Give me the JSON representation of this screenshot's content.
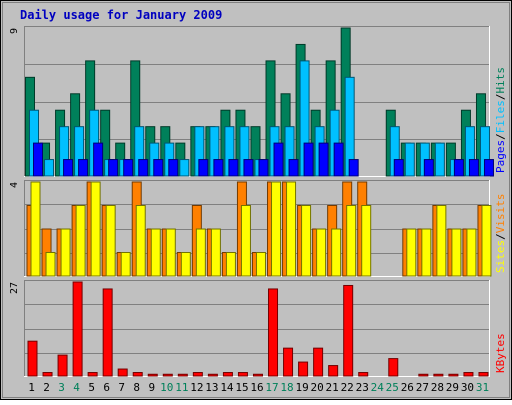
{
  "chart_data": {
    "type": "bar",
    "title": "Daily usage for January 2009",
    "categories": [
      "1",
      "2",
      "3",
      "4",
      "5",
      "6",
      "7",
      "8",
      "9",
      "10",
      "11",
      "12",
      "13",
      "14",
      "15",
      "16",
      "17",
      "18",
      "19",
      "20",
      "21",
      "22",
      "23",
      "24",
      "25",
      "26",
      "27",
      "28",
      "29",
      "30",
      "31"
    ],
    "weekend_days": [
      3,
      4,
      10,
      11,
      17,
      18,
      24,
      25,
      31
    ],
    "panels": [
      {
        "id": "hits",
        "ymax_label": "9",
        "ylim": [
          0,
          9
        ],
        "label_parts": [
          "Pages",
          "/",
          "Files",
          "/",
          "Hits"
        ],
        "series": [
          {
            "name": "Hits",
            "color": "#00805a",
            "values": [
              6,
              2,
              4,
              5,
              7,
              4,
              2,
              7,
              3,
              3,
              2,
              3,
              3,
              4,
              4,
              3,
              7,
              5,
              8,
              4,
              7,
              9,
              0,
              0,
              4,
              2,
              2,
              2,
              2,
              4,
              5
            ]
          },
          {
            "name": "Files",
            "color": "#00c0ff",
            "values": [
              4,
              1,
              3,
              3,
              4,
              1,
              1,
              3,
              2,
              2,
              1,
              3,
              3,
              3,
              3,
              1,
              3,
              3,
              7,
              3,
              4,
              6,
              0,
              0,
              3,
              2,
              2,
              2,
              1,
              3,
              3
            ]
          },
          {
            "name": "Pages",
            "color": "#0000ff",
            "values": [
              2,
              0,
              1,
              1,
              2,
              1,
              1,
              1,
              1,
              1,
              0,
              1,
              1,
              1,
              1,
              1,
              2,
              1,
              2,
              2,
              2,
              1,
              0,
              0,
              1,
              0,
              1,
              0,
              1,
              1,
              1
            ]
          }
        ]
      },
      {
        "id": "visits",
        "ymax_label": "4",
        "ylim": [
          0,
          4
        ],
        "label_parts": [
          "Sites",
          "/",
          "Visits"
        ],
        "series": [
          {
            "name": "Visits",
            "color": "#ff8000",
            "values": [
              3,
              2,
              2,
              3,
              4,
              3,
              1,
              4,
              2,
              2,
              1,
              3,
              2,
              1,
              4,
              1,
              4,
              4,
              3,
              2,
              3,
              4,
              4,
              0,
              0,
              2,
              2,
              3,
              2,
              2,
              3
            ]
          },
          {
            "name": "Sites",
            "color": "#ffff00",
            "values": [
              4,
              1,
              2,
              3,
              4,
              3,
              1,
              3,
              2,
              2,
              1,
              2,
              2,
              1,
              3,
              1,
              4,
              4,
              3,
              2,
              2,
              3,
              3,
              0,
              0,
              2,
              2,
              3,
              2,
              2,
              3
            ]
          }
        ]
      },
      {
        "id": "kbytes",
        "ymax_label": "27",
        "ylim": [
          0,
          27
        ],
        "label_parts": [
          "KBytes"
        ],
        "series": [
          {
            "name": "KBytes",
            "color": "#ff0000",
            "values": [
              10,
              1,
              6,
              27,
              1,
              25,
              2,
              1,
              0.5,
              0.5,
              0.5,
              1,
              0.5,
              1,
              1,
              0.5,
              25,
              8,
              4,
              8,
              3,
              26,
              1,
              0,
              5,
              0,
              0.5,
              0.5,
              0.5,
              1,
              1
            ]
          }
        ]
      }
    ]
  },
  "colors": {
    "title": "#0000c0",
    "weekday_label": "#000000",
    "weekend_label": "#00805a",
    "plot_bg": "#c0c0c0",
    "slash": "#000000"
  }
}
